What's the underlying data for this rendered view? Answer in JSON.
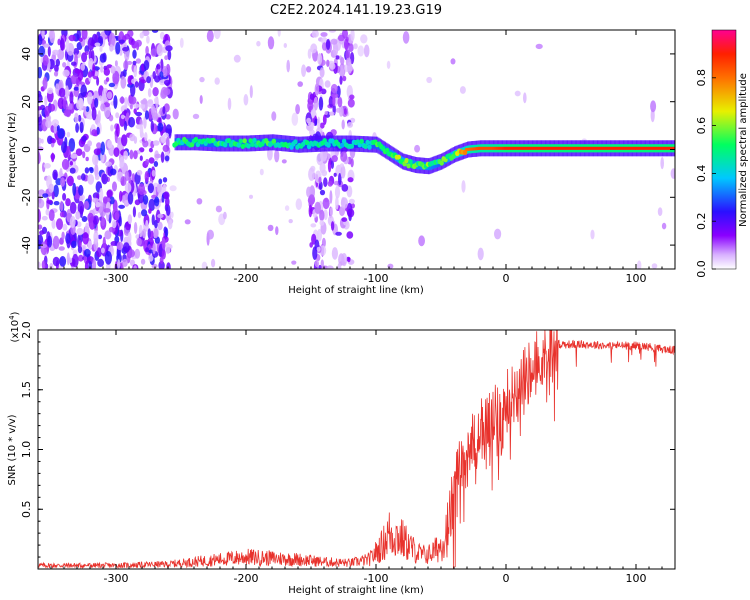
{
  "title": "C2E2.2024.141.19.23.G19",
  "chart_data": [
    {
      "type": "heatmap",
      "xlabel": "Height of straight line (km)",
      "ylabel": "Frequency (Hz)",
      "xlim": [
        -360,
        130
      ],
      "ylim": [
        -50,
        50
      ],
      "xticks": [
        -300,
        -200,
        -100,
        0,
        100
      ],
      "yticks": [
        -40,
        -20,
        0,
        20,
        40
      ],
      "colorbar": {
        "label": "Normalized spectral amplitude",
        "range": [
          0,
          1
        ],
        "ticks": [
          0.0,
          0.2,
          0.4,
          0.6,
          0.8
        ],
        "colors": [
          "#ffffff",
          "#d8b0ff",
          "#8a00ff",
          "#2a10ff",
          "#00c8ff",
          "#00ff60",
          "#e8f000",
          "#ff3000",
          "#ff0080"
        ]
      },
      "ridge": [
        {
          "x": -255,
          "y": 3.0,
          "amp": 0.55
        },
        {
          "x": -240,
          "y": 3.0,
          "amp": 0.55
        },
        {
          "x": -220,
          "y": 2.5,
          "amp": 0.55
        },
        {
          "x": -200,
          "y": 2.5,
          "amp": 0.55
        },
        {
          "x": -180,
          "y": 3.0,
          "amp": 0.55
        },
        {
          "x": -160,
          "y": 2.0,
          "amp": 0.5
        },
        {
          "x": -140,
          "y": 2.5,
          "amp": 0.5
        },
        {
          "x": -120,
          "y": 2.5,
          "amp": 0.45
        },
        {
          "x": -100,
          "y": 2.0,
          "amp": 0.55
        },
        {
          "x": -90,
          "y": -1.5,
          "amp": 0.6
        },
        {
          "x": -80,
          "y": -5.0,
          "amp": 0.65
        },
        {
          "x": -70,
          "y": -6.5,
          "amp": 0.6
        },
        {
          "x": -60,
          "y": -7.0,
          "amp": 0.6
        },
        {
          "x": -50,
          "y": -5.0,
          "amp": 0.55
        },
        {
          "x": -40,
          "y": -2.0,
          "amp": 0.7
        },
        {
          "x": -30,
          "y": 0.0,
          "amp": 0.8
        },
        {
          "x": -20,
          "y": 0.5,
          "amp": 0.85
        },
        {
          "x": -10,
          "y": 0.5,
          "amp": 0.85
        },
        {
          "x": 0,
          "y": 0.5,
          "amp": 0.9
        },
        {
          "x": 20,
          "y": 0.5,
          "amp": 0.9
        },
        {
          "x": 60,
          "y": 0.5,
          "amp": 0.9
        },
        {
          "x": 100,
          "y": 0.5,
          "amp": 0.9
        },
        {
          "x": 130,
          "y": 0.5,
          "amp": 0.9
        }
      ],
      "noise_regions": [
        {
          "x_range": [
            -360,
            -258
          ],
          "density": "high"
        },
        {
          "x_range": [
            -152,
            -118
          ],
          "density": "medium"
        },
        {
          "x_range": [
            -258,
            -152
          ],
          "density": "low"
        },
        {
          "x_range": [
            -118,
            130
          ],
          "density": "very low"
        }
      ]
    },
    {
      "type": "line",
      "xlabel": "Height of straight line (km)",
      "ylabel": "SNR (10 * v/v)",
      "yscale_label": "(x10^4)",
      "xlim": [
        -360,
        130
      ],
      "ylim": [
        0,
        2.0
      ],
      "xticks": [
        -300,
        -200,
        -100,
        0,
        100
      ],
      "yticks": [
        0.5,
        1.0,
        1.5,
        2.0
      ],
      "color": "#e8322c",
      "series": [
        {
          "x": [
            -360,
            -300,
            -260,
            -240,
            -220,
            -200,
            -180,
            -160,
            -140,
            -120,
            -105,
            -95,
            -90,
            -85,
            -80,
            -75,
            -70,
            -65,
            -60,
            -55,
            -50,
            -45,
            -40,
            -35,
            -30,
            -25,
            -20,
            -15,
            -10,
            -5,
            0,
            5,
            10,
            15,
            20,
            25,
            30,
            35,
            40,
            50,
            60,
            80,
            100,
            110,
            120,
            130
          ],
          "y": [
            0.03,
            0.03,
            0.04,
            0.06,
            0.08,
            0.1,
            0.09,
            0.08,
            0.06,
            0.05,
            0.08,
            0.2,
            0.3,
            0.28,
            0.25,
            0.2,
            0.15,
            0.12,
            0.12,
            0.15,
            0.2,
            0.35,
            0.6,
            0.9,
            1.05,
            1.05,
            1.15,
            1.2,
            1.25,
            1.3,
            1.4,
            1.45,
            1.55,
            1.6,
            1.68,
            1.75,
            1.82,
            1.87,
            1.88,
            1.88,
            1.88,
            1.87,
            1.87,
            1.86,
            1.84,
            1.83
          ]
        }
      ]
    }
  ]
}
